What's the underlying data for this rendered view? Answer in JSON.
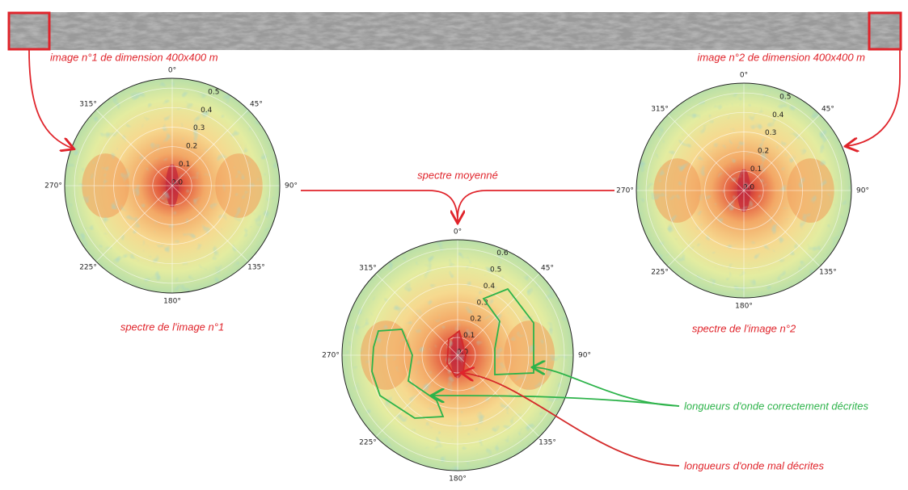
{
  "strip": {
    "label_left": "image n°1 de dimension 400x400 m",
    "label_right": "image n°2 de dimension 400x400 m"
  },
  "plots": [
    {
      "angle_labels": [
        "0°",
        "45°",
        "90°",
        "135°",
        "180°",
        "225°",
        "270°",
        "315°"
      ],
      "radial_labels": [
        "0.0",
        "0.1",
        "0.2",
        "0.3",
        "0.4",
        "0.5"
      ],
      "caption": "spectre de l'image n°1"
    },
    {
      "angle_labels": [
        "0°",
        "45°",
        "90°",
        "135°",
        "180°",
        "225°",
        "270°",
        "315°"
      ],
      "radial_labels": [
        "0.0",
        "0.1",
        "0.2",
        "0.3",
        "0.4",
        "0.5"
      ],
      "caption": "spectre de l'image n°2"
    },
    {
      "angle_labels": [
        "0°",
        "45°",
        "90°",
        "135°",
        "180°",
        "225°",
        "270°",
        "315°"
      ],
      "radial_labels": [
        "0.0",
        "0.1",
        "0.2",
        "0.3",
        "0.4",
        "0.5",
        "0.6"
      ],
      "caption": "spectre moyenné"
    }
  ],
  "annotations": {
    "correct": "longueurs d'onde correctement décrites",
    "bad": "longueurs d'onde mal décrites"
  }
}
